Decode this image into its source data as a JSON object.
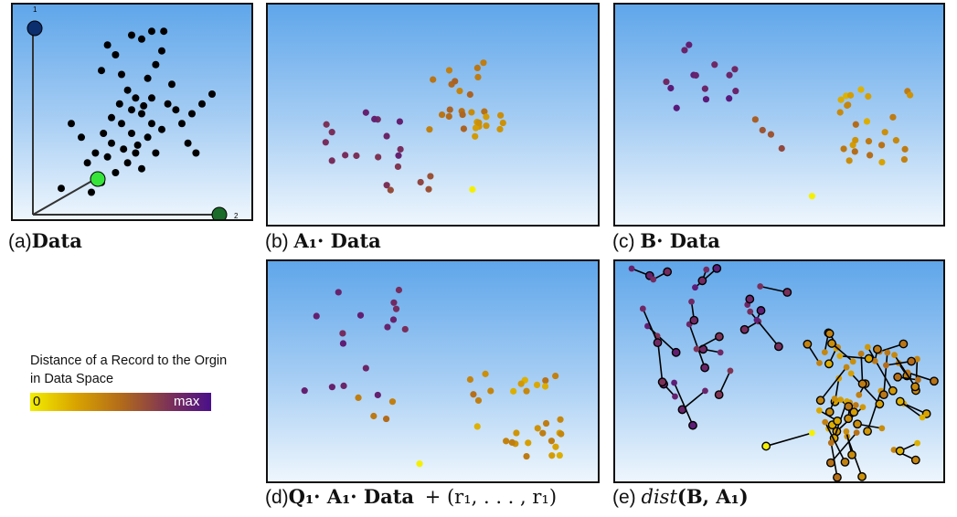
{
  "panels": [
    {
      "id": "a",
      "caption_prefix": "(a)",
      "caption_math": "Data"
    },
    {
      "id": "b",
      "caption_prefix": "(b)",
      "caption_math": "A₁· Data"
    },
    {
      "id": "c",
      "caption_prefix": "(c)",
      "caption_math": "B· Data"
    },
    {
      "id": "d",
      "caption_prefix": "(d)",
      "caption_math": "Q₁· A₁· Data",
      "caption_extra": "+  (r₁, . . . , r₁)"
    },
    {
      "id": "e",
      "caption_prefix": "(e)",
      "caption_func": "dist",
      "caption_math": "(B, A₁)"
    }
  ],
  "legend": {
    "title": "Distance of a Record to the Orgin in Data Space",
    "min_label": "0",
    "max_label": "max",
    "colors": [
      "#f2ee00",
      "#d9a400",
      "#b36b1a",
      "#7a2f5a",
      "#4a0f8a"
    ]
  },
  "chart_data": [
    {
      "type": "scatter",
      "panel": "a",
      "axis_labels": [
        "1",
        "2"
      ],
      "axis_colors": [
        "#0b2e6e",
        "#1b6b2a"
      ],
      "highlight_color": "#36e43a",
      "points": [
        [
          0.38,
          0.15
        ],
        [
          0.42,
          0.2
        ],
        [
          0.35,
          0.28
        ],
        [
          0.5,
          0.1
        ],
        [
          0.55,
          0.12
        ],
        [
          0.6,
          0.08
        ],
        [
          0.45,
          0.3
        ],
        [
          0.48,
          0.38
        ],
        [
          0.52,
          0.42
        ],
        [
          0.58,
          0.32
        ],
        [
          0.62,
          0.25
        ],
        [
          0.65,
          0.18
        ],
        [
          0.7,
          0.35
        ],
        [
          0.68,
          0.45
        ],
        [
          0.72,
          0.48
        ],
        [
          0.55,
          0.5
        ],
        [
          0.6,
          0.55
        ],
        [
          0.5,
          0.6
        ],
        [
          0.45,
          0.55
        ],
        [
          0.4,
          0.65
        ],
        [
          0.58,
          0.62
        ],
        [
          0.65,
          0.58
        ],
        [
          0.75,
          0.55
        ],
        [
          0.8,
          0.5
        ],
        [
          0.52,
          0.7
        ],
        [
          0.48,
          0.75
        ],
        [
          0.42,
          0.8
        ],
        [
          0.38,
          0.72
        ],
        [
          0.35,
          0.85
        ],
        [
          0.55,
          0.78
        ],
        [
          0.62,
          0.7
        ],
        [
          0.3,
          0.9
        ],
        [
          0.28,
          0.75
        ],
        [
          0.25,
          0.62
        ],
        [
          0.2,
          0.55
        ],
        [
          0.15,
          0.88
        ],
        [
          0.85,
          0.45
        ],
        [
          0.9,
          0.4
        ],
        [
          0.78,
          0.65
        ],
        [
          0.82,
          0.7
        ],
        [
          0.66,
          0.08
        ],
        [
          0.44,
          0.45
        ],
        [
          0.5,
          0.48
        ],
        [
          0.56,
          0.46
        ],
        [
          0.46,
          0.68
        ],
        [
          0.53,
          0.66
        ],
        [
          0.6,
          0.42
        ],
        [
          0.4,
          0.52
        ],
        [
          0.36,
          0.6
        ],
        [
          0.32,
          0.7
        ]
      ],
      "highlight": [
        0.28,
        0.92
      ]
    },
    {
      "type": "scatter",
      "panel": "b"
    },
    {
      "type": "scatter",
      "panel": "c"
    },
    {
      "type": "scatter",
      "panel": "d"
    },
    {
      "type": "scatter",
      "panel": "e"
    }
  ]
}
